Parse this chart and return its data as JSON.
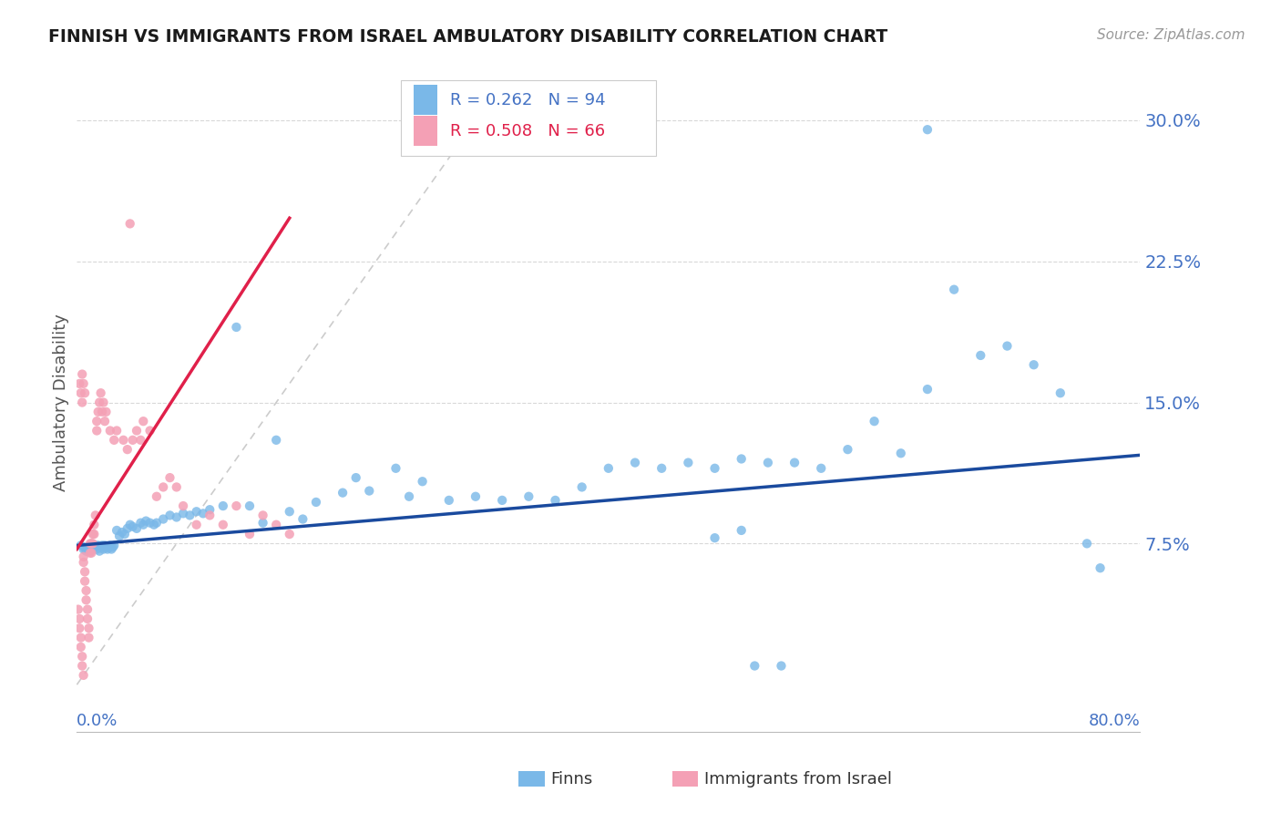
{
  "title": "FINNISH VS IMMIGRANTS FROM ISRAEL AMBULATORY DISABILITY CORRELATION CHART",
  "source": "Source: ZipAtlas.com",
  "ylabel": "Ambulatory Disability",
  "xlim": [
    0.0,
    0.8
  ],
  "ylim": [
    -0.025,
    0.325
  ],
  "legend1_label": "Finns",
  "legend2_label": "Immigrants from Israel",
  "R1": "0.262",
  "N1": "94",
  "R2": "0.508",
  "N2": "66",
  "color_finns": "#7ab8e8",
  "color_israel": "#f4a0b5",
  "color_regline_finns": "#1a4a9e",
  "color_regline_israel": "#e0204a",
  "color_diagonal": "#cccccc",
  "background_color": "#ffffff",
  "grid_color": "#d8d8d8",
  "ytick_vals": [
    0.075,
    0.15,
    0.225,
    0.3
  ],
  "ytick_labels": [
    "7.5%",
    "15.0%",
    "22.5%",
    "30.0%"
  ],
  "finns_x": [
    0.003,
    0.005,
    0.006,
    0.007,
    0.008,
    0.009,
    0.01,
    0.01,
    0.011,
    0.012,
    0.013,
    0.014,
    0.015,
    0.015,
    0.016,
    0.017,
    0.018,
    0.019,
    0.02,
    0.021,
    0.022,
    0.023,
    0.024,
    0.025,
    0.026,
    0.027,
    0.028,
    0.03,
    0.032,
    0.034,
    0.036,
    0.038,
    0.04,
    0.042,
    0.045,
    0.048,
    0.05,
    0.052,
    0.055,
    0.058,
    0.06,
    0.065,
    0.07,
    0.075,
    0.08,
    0.085,
    0.09,
    0.095,
    0.1,
    0.11,
    0.12,
    0.13,
    0.14,
    0.15,
    0.16,
    0.17,
    0.18,
    0.2,
    0.21,
    0.22,
    0.24,
    0.25,
    0.26,
    0.28,
    0.3,
    0.32,
    0.34,
    0.36,
    0.38,
    0.4,
    0.42,
    0.44,
    0.46,
    0.48,
    0.5,
    0.52,
    0.54,
    0.56,
    0.58,
    0.6,
    0.62,
    0.64,
    0.66,
    0.68,
    0.7,
    0.72,
    0.74,
    0.76,
    0.48,
    0.5,
    0.51,
    0.53,
    0.64,
    0.77
  ],
  "finns_y": [
    0.074,
    0.072,
    0.073,
    0.071,
    0.072,
    0.073,
    0.071,
    0.074,
    0.073,
    0.072,
    0.073,
    0.074,
    0.072,
    0.073,
    0.074,
    0.071,
    0.073,
    0.074,
    0.072,
    0.074,
    0.073,
    0.072,
    0.073,
    0.074,
    0.072,
    0.073,
    0.074,
    0.082,
    0.079,
    0.081,
    0.08,
    0.083,
    0.085,
    0.084,
    0.083,
    0.086,
    0.085,
    0.087,
    0.086,
    0.085,
    0.086,
    0.088,
    0.09,
    0.089,
    0.091,
    0.09,
    0.092,
    0.091,
    0.093,
    0.095,
    0.19,
    0.095,
    0.086,
    0.13,
    0.092,
    0.088,
    0.097,
    0.102,
    0.11,
    0.103,
    0.115,
    0.1,
    0.108,
    0.098,
    0.1,
    0.098,
    0.1,
    0.098,
    0.105,
    0.115,
    0.118,
    0.115,
    0.118,
    0.115,
    0.12,
    0.118,
    0.118,
    0.115,
    0.125,
    0.14,
    0.123,
    0.295,
    0.21,
    0.175,
    0.18,
    0.17,
    0.155,
    0.075,
    0.078,
    0.082,
    0.01,
    0.01,
    0.157,
    0.062
  ],
  "israel_x": [
    0.001,
    0.002,
    0.002,
    0.003,
    0.003,
    0.004,
    0.004,
    0.005,
    0.005,
    0.005,
    0.006,
    0.006,
    0.007,
    0.007,
    0.008,
    0.008,
    0.009,
    0.009,
    0.01,
    0.01,
    0.011,
    0.011,
    0.012,
    0.012,
    0.013,
    0.013,
    0.014,
    0.015,
    0.015,
    0.016,
    0.017,
    0.018,
    0.019,
    0.02,
    0.021,
    0.022,
    0.025,
    0.028,
    0.03,
    0.035,
    0.038,
    0.04,
    0.042,
    0.045,
    0.048,
    0.05,
    0.055,
    0.06,
    0.065,
    0.07,
    0.075,
    0.08,
    0.09,
    0.1,
    0.11,
    0.12,
    0.13,
    0.14,
    0.15,
    0.16,
    0.002,
    0.003,
    0.004,
    0.004,
    0.005,
    0.006
  ],
  "israel_y": [
    0.04,
    0.035,
    0.03,
    0.025,
    0.02,
    0.015,
    0.01,
    0.005,
    0.068,
    0.065,
    0.06,
    0.055,
    0.05,
    0.045,
    0.04,
    0.035,
    0.03,
    0.025,
    0.075,
    0.07,
    0.075,
    0.07,
    0.08,
    0.075,
    0.085,
    0.08,
    0.09,
    0.14,
    0.135,
    0.145,
    0.15,
    0.155,
    0.145,
    0.15,
    0.14,
    0.145,
    0.135,
    0.13,
    0.135,
    0.13,
    0.125,
    0.245,
    0.13,
    0.135,
    0.13,
    0.14,
    0.135,
    0.1,
    0.105,
    0.11,
    0.105,
    0.095,
    0.085,
    0.09,
    0.085,
    0.095,
    0.08,
    0.09,
    0.085,
    0.08,
    0.16,
    0.155,
    0.15,
    0.165,
    0.16,
    0.155
  ]
}
